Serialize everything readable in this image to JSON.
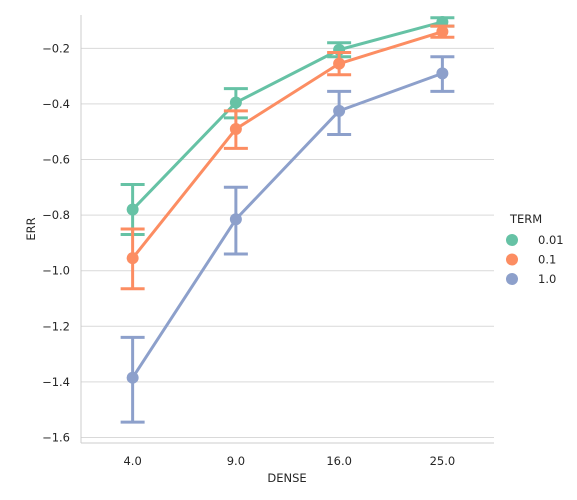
{
  "chart_data": {
    "type": "line",
    "style": "point-plot with error bars",
    "xlabel": "DENSE",
    "ylabel": "ERR",
    "categories": [
      "4.0",
      "9.0",
      "16.0",
      "25.0"
    ],
    "ylim": [
      -1.62,
      -0.08
    ],
    "yticks": [
      -1.6,
      -1.4,
      -1.2,
      -1.0,
      -0.8,
      -0.6,
      -0.4,
      -0.2
    ],
    "ytick_labels": [
      "−1.6",
      "−1.4",
      "−1.2",
      "−1.0",
      "−0.8",
      "−0.6",
      "−0.4",
      "−0.2"
    ],
    "grid": "horizontal",
    "legend": {
      "title": "TERM",
      "placement": "right"
    },
    "series": [
      {
        "name": "0.01",
        "color": "#66c2a5",
        "values": [
          -0.78,
          -0.395,
          -0.205,
          -0.105
        ],
        "err_low": [
          -0.87,
          -0.45,
          -0.23,
          -0.12
        ],
        "err_high": [
          -0.69,
          -0.345,
          -0.18,
          -0.09
        ]
      },
      {
        "name": "0.1",
        "color": "#fc8d62",
        "values": [
          -0.955,
          -0.49,
          -0.255,
          -0.14
        ],
        "err_low": [
          -1.065,
          -0.56,
          -0.295,
          -0.16
        ],
        "err_high": [
          -0.85,
          -0.425,
          -0.215,
          -0.12
        ]
      },
      {
        "name": "1.0",
        "color": "#8da0cb",
        "values": [
          -1.385,
          -0.815,
          -0.425,
          -0.29
        ],
        "err_low": [
          -1.545,
          -0.94,
          -0.51,
          -0.355
        ],
        "err_high": [
          -1.24,
          -0.7,
          -0.355,
          -0.23
        ]
      }
    ]
  }
}
